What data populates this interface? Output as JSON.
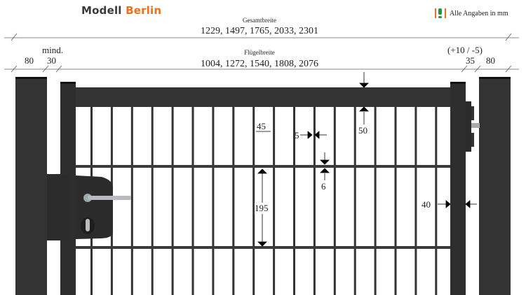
{
  "brand": {
    "part1": "Modell",
    "part2": "Berlin",
    "colors": {
      "dark": "#3a3a3a",
      "accent": "#e8701e"
    }
  },
  "note": {
    "icon": "warning-icon",
    "text": "Alle Angaben in mm"
  },
  "dimensions": {
    "total_width_label": "Gesamtbreite",
    "total_width_values": "1229, 1497, 1765, 2033, 2301",
    "leaf_width_label": "Flügelbreite",
    "leaf_width_values": "1004, 1272, 1540, 1808, 2076",
    "left_post": "80",
    "left_gap_label": "mind.",
    "left_gap": "30",
    "right_tolerance": "(+10 / -5)",
    "right_gap": "35",
    "right_post": "80",
    "bar_spacing": "45",
    "bar_thickness": "5",
    "top_rail": "50",
    "wire_thickness": "6",
    "wire_spacing": "195",
    "frame_width": "40"
  },
  "colors": {
    "frame": "#333333",
    "post_top": "#111111",
    "lock_handle": "#b8bcc0"
  }
}
